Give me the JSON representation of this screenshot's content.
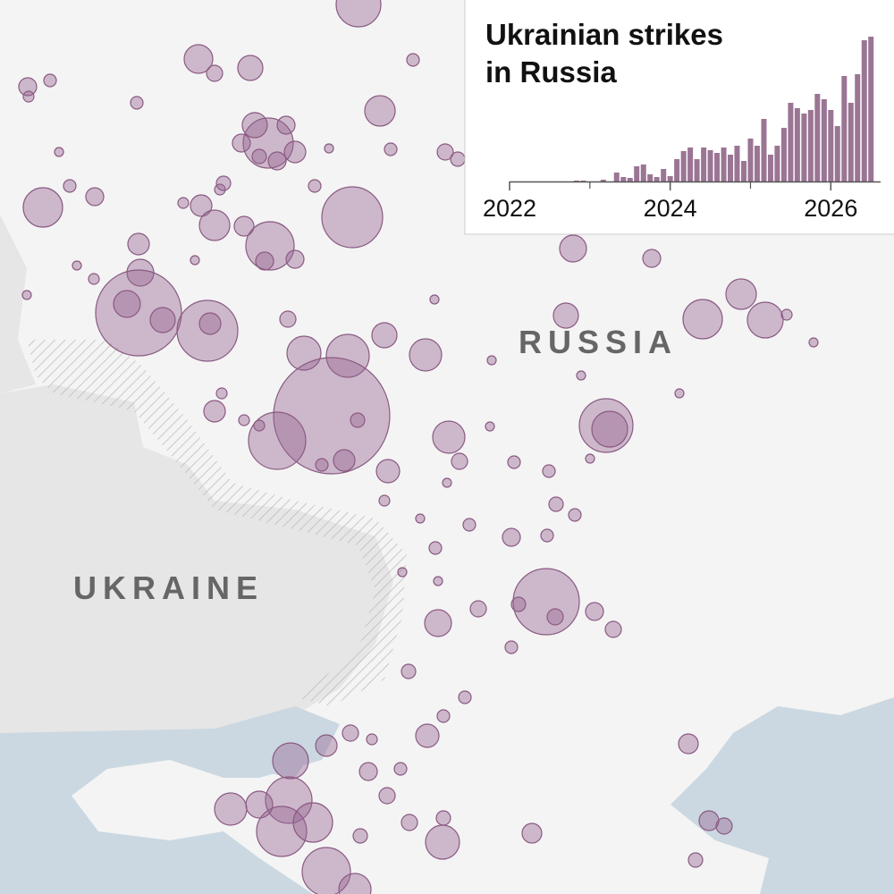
{
  "map": {
    "labels": [
      "RUSSIA",
      "UKRAINE"
    ]
  },
  "chart_data": {
    "type": "bar",
    "title": "Ukrainian strikes\nin Russia",
    "title_lines": [
      "Ukrainian strikes",
      "in Russia"
    ],
    "x": [
      2022.833,
      2022.917,
      2023.0,
      2023.083,
      2023.167,
      2023.25,
      2023.333,
      2023.417,
      2023.5,
      2023.583,
      2023.667,
      2023.75,
      2023.833,
      2023.917,
      2024.0,
      2024.083,
      2024.167,
      2024.25,
      2024.333,
      2024.417,
      2024.5,
      2024.583,
      2024.667,
      2024.75,
      2024.833,
      2024.917,
      2025.0,
      2025.083,
      2025.167,
      2025.25,
      2025.333,
      2025.417,
      2025.5,
      2025.583,
      2025.667,
      2025.75,
      2025.833,
      2025.917,
      2026.0,
      2026.083,
      2026.167,
      2026.25,
      2026.333,
      2026.417,
      2026.5
    ],
    "values": [
      1,
      1,
      0,
      0,
      2,
      0,
      10,
      5,
      4,
      17,
      19,
      8,
      5,
      14,
      6,
      25,
      34,
      38,
      25,
      38,
      35,
      32,
      38,
      30,
      40,
      23,
      48,
      40,
      70,
      30,
      40,
      60,
      88,
      82,
      76,
      80,
      98,
      92,
      80,
      62,
      118,
      88,
      120,
      158,
      162
    ],
    "color": "#9b7594",
    "xlim": [
      2022,
      2026.62
    ],
    "xticks": [
      2022,
      2024,
      2026
    ],
    "ylim": [
      0,
      165
    ]
  }
}
